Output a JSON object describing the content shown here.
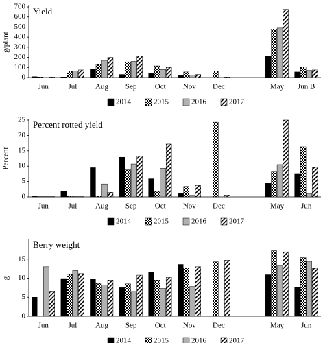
{
  "chart_data": [
    {
      "type": "bar",
      "title": "Yield",
      "y_label": "g/plant",
      "categories": [
        "Jun",
        "Jul",
        "Aug",
        "Sep",
        "Oct",
        "Nov",
        "Dec",
        null,
        "May",
        "Jun B"
      ],
      "ylim": [
        0,
        700
      ],
      "yticks": [
        0,
        100,
        200,
        300,
        400,
        500,
        600,
        700
      ],
      "series": [
        {
          "name": "2014",
          "color": "#000000",
          "pattern": "solid",
          "values": [
            8,
            5,
            85,
            30,
            40,
            20,
            null,
            null,
            215,
            55
          ]
        },
        {
          "name": "2015",
          "color": "#000000",
          "pattern": "checker",
          "values": [
            5,
            65,
            130,
            155,
            115,
            55,
            65,
            null,
            480,
            105
          ]
        },
        {
          "name": "2016",
          "color": "#b0b0b0",
          "pattern": "solid",
          "values": [
            null,
            65,
            170,
            160,
            80,
            25,
            null,
            null,
            490,
            70
          ]
        },
        {
          "name": "2017",
          "color": "#000000",
          "pattern": "hatch",
          "values": [
            5,
            75,
            200,
            215,
            100,
            30,
            5,
            null,
            675,
            75
          ]
        }
      ]
    },
    {
      "type": "bar",
      "title": "Percent rotted yield",
      "y_label": "Percent",
      "categories": [
        "Jun",
        "Jul",
        "Aug",
        "Sep",
        "Oct",
        "Nov",
        "Dec",
        null,
        "May",
        "Jun"
      ],
      "ylim": [
        0,
        25
      ],
      "yticks": [
        0,
        5,
        10,
        15,
        20,
        25
      ],
      "series": [
        {
          "name": "2014",
          "color": "#000000",
          "pattern": "solid",
          "values": [
            0.2,
            1.8,
            9.5,
            12.9,
            5.9,
            1.1,
            null,
            null,
            4.4,
            7.6
          ]
        },
        {
          "name": "2015",
          "color": "#000000",
          "pattern": "checker",
          "values": [
            0.1,
            0.2,
            0.3,
            8.8,
            1.8,
            3.4,
            24.3,
            null,
            8.1,
            16.3
          ]
        },
        {
          "name": "2016",
          "color": "#b0b0b0",
          "pattern": "solid",
          "values": [
            0.1,
            0.1,
            4.2,
            10.7,
            9.3,
            0.5,
            null,
            null,
            10.5,
            1.1
          ]
        },
        {
          "name": "2017",
          "color": "#000000",
          "pattern": "hatch",
          "values": [
            0.1,
            0.1,
            1.5,
            13.2,
            17.2,
            3.7,
            0.6,
            null,
            25,
            9.6
          ]
        }
      ]
    },
    {
      "type": "bar",
      "title": "Berry weight",
      "y_label": "g",
      "categories": [
        "Jun",
        "Jul",
        "Aug",
        "Sep",
        "Oct",
        "Nov",
        "Dec",
        null,
        "May",
        "Jun"
      ],
      "ylim": [
        0,
        20
      ],
      "yticks": [
        0,
        5,
        10,
        15
      ],
      "series": [
        {
          "name": "2014",
          "color": "#000000",
          "pattern": "solid",
          "values": [
            5,
            9.9,
            9.8,
            7.5,
            11.6,
            13.6,
            null,
            null,
            10.9,
            7.7
          ]
        },
        {
          "name": "2015",
          "color": "#000000",
          "pattern": "checker",
          "values": [
            null,
            11,
            8.6,
            8.5,
            9.5,
            12.7,
            14.3,
            null,
            17.2,
            15.4
          ]
        },
        {
          "name": "2016",
          "color": "#b0b0b0",
          "pattern": "solid",
          "values": [
            13,
            12,
            8.2,
            6.5,
            7.3,
            7.8,
            null,
            null,
            13.2,
            14.4
          ]
        },
        {
          "name": "2017",
          "color": "#000000",
          "pattern": "hatch",
          "values": [
            6.6,
            11.2,
            9.5,
            10.8,
            10.2,
            13,
            14.7,
            null,
            16.9,
            12.6
          ]
        }
      ]
    }
  ]
}
